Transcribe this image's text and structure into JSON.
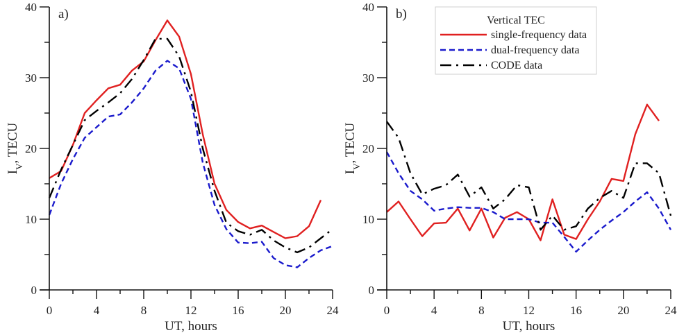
{
  "chart_data": [
    {
      "type": "line",
      "panel_label": "a)",
      "xlabel": "UT, hours",
      "ylabel": "I_V, TECU",
      "xlim": [
        0,
        24
      ],
      "ylim": [
        0,
        40
      ],
      "xticks": [
        0,
        4,
        8,
        12,
        16,
        20,
        24
      ],
      "yticks": [
        0,
        10,
        20,
        30,
        40
      ],
      "grid": false,
      "series": [
        {
          "name": "single-frequency data",
          "color": "#e02020",
          "style": "solid",
          "x": [
            0,
            1,
            2,
            3,
            4,
            5,
            6,
            7,
            8,
            9,
            10,
            11,
            12,
            13,
            14,
            15,
            16,
            17,
            18,
            19,
            20,
            21,
            22,
            23
          ],
          "values": [
            15.8,
            16.8,
            20.5,
            25,
            26.8,
            28.5,
            29,
            31,
            32.3,
            35.3,
            38.1,
            35.8,
            30.5,
            22,
            15,
            11.3,
            9.6,
            8.7,
            9.1,
            8.2,
            7.3,
            7.6,
            9,
            12.7
          ]
        },
        {
          "name": "dual-frequency data",
          "color": "#1a1acc",
          "style": "dashed",
          "x": [
            0,
            1,
            2,
            3,
            4,
            5,
            6,
            7,
            8,
            9,
            10,
            11,
            12,
            13,
            14,
            15,
            16,
            17,
            18,
            19,
            20,
            21,
            22,
            23,
            24
          ],
          "values": [
            10.6,
            15,
            18.5,
            21.5,
            23,
            24.5,
            24.8,
            26.5,
            28.5,
            31,
            32.4,
            31.3,
            27,
            18,
            12,
            8.6,
            6.7,
            6.6,
            6.8,
            4.5,
            3.5,
            3.2,
            4.5,
            5.6,
            6.2
          ]
        },
        {
          "name": "CODE data",
          "color": "#000000",
          "style": "dashdot",
          "x": [
            0,
            1,
            2,
            3,
            4,
            5,
            6,
            7,
            8,
            9,
            10,
            11,
            12,
            13,
            14,
            15,
            16,
            17,
            18,
            19,
            20,
            21,
            22,
            23,
            24
          ],
          "values": [
            13,
            17,
            20.5,
            24,
            25.3,
            26.5,
            27.8,
            29.8,
            32.5,
            35.5,
            35.5,
            33,
            28,
            20,
            14,
            9.5,
            8.3,
            7.8,
            8.5,
            7,
            6,
            5.3,
            6,
            7.3,
            8.6
          ]
        }
      ]
    },
    {
      "type": "line",
      "panel_label": "b)",
      "xlabel": "UT, hours",
      "ylabel": "I_V, TECU",
      "xlim": [
        0,
        24
      ],
      "ylim": [
        0,
        40
      ],
      "xticks": [
        0,
        4,
        8,
        12,
        16,
        20,
        24
      ],
      "yticks": [
        0,
        10,
        20,
        30,
        40
      ],
      "grid": false,
      "legend": {
        "title": "Vertical TEC",
        "position": "top-right",
        "entries": [
          "single-frequency data",
          "dual-frequency data",
          "CODE data"
        ]
      },
      "series": [
        {
          "name": "single-frequency data",
          "color": "#e02020",
          "style": "solid",
          "x": [
            0,
            1,
            2,
            3,
            4,
            5,
            6,
            7,
            8,
            9,
            10,
            11,
            12,
            13,
            14,
            15,
            16,
            17,
            18,
            19,
            20,
            21,
            22,
            23
          ],
          "values": [
            11,
            12.5,
            10,
            7.6,
            9.4,
            9.5,
            11.5,
            8.4,
            11.5,
            7.4,
            10.2,
            11,
            10,
            7,
            12.8,
            7.8,
            7.2,
            10,
            12.5,
            15.7,
            15.4,
            22,
            26.2,
            23.9
          ]
        },
        {
          "name": "dual-frequency data",
          "color": "#1a1acc",
          "style": "dashed",
          "x": [
            0,
            1,
            2,
            3,
            4,
            5,
            6,
            7,
            8,
            9,
            10,
            11,
            12,
            13,
            14,
            15,
            16,
            17,
            18,
            19,
            20,
            21,
            22,
            23,
            24
          ],
          "values": [
            19.5,
            16.5,
            14,
            12.8,
            11.2,
            11.5,
            11.7,
            11.6,
            11.6,
            11,
            10,
            10,
            10,
            9.5,
            9.5,
            7.5,
            5.4,
            7,
            8.5,
            9.8,
            11,
            12.5,
            13.8,
            11.5,
            8.5
          ]
        },
        {
          "name": "CODE data",
          "color": "#000000",
          "style": "dashdot",
          "x": [
            0,
            1,
            2,
            3,
            4,
            5,
            6,
            7,
            8,
            9,
            10,
            11,
            12,
            13,
            14,
            15,
            16,
            17,
            18,
            19,
            20,
            21,
            22,
            23,
            24
          ],
          "values": [
            23.8,
            21.5,
            16.5,
            13.5,
            14.3,
            14.8,
            16.3,
            13.2,
            14.5,
            11.5,
            12.8,
            14.8,
            14.5,
            8.5,
            10.5,
            8.5,
            9,
            11.5,
            13,
            14,
            13,
            17.9,
            17.9,
            16.5,
            10.5
          ]
        }
      ]
    }
  ]
}
